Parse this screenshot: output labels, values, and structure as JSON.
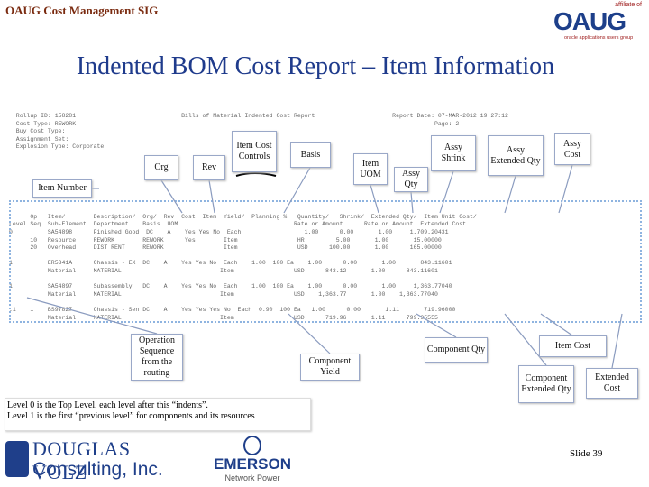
{
  "header": {
    "title": "OAUG Cost Management SIG",
    "logo": {
      "affiliate": "affiliate of",
      "name": "OAUG",
      "tagline": "oracle applications users group"
    }
  },
  "title": "Indented BOM Cost Report – Item Information",
  "report": {
    "lines": [
      "  Rollup ID: 158281                              Bills of Material Indented Cost Report                      Report Date: 07-MAR-2012 19:27:12",
      "  Cost Type: REWORK                                                                                                      Page: 2",
      "  Buy Cost Type:",
      "  Assignment Set:",
      "  Explosion Type: Corporate",
      "",
      "",
      "",
      "",
      "",
      "",
      "",
      "",
      "      Op   Item/        Description/  Org/  Rev  Cost  Item  Yield/  Planning %   Quantity/   Shrink/  Extended Qty/  Item Unit Cost/",
      "Level Seq  Sub-Element  Department    Basis  UOM                                 Rate or Amount      Rate or Amount  Extended Cost",
      "0          SA54898      Finished Good  DC    A    Yes Yes No  Each                  1.00      0.00       1.00     1,709.20431",
      "      10   Resource     REWORK        REWORK      Yes        Item                 HR         5.00       1.00       15.00000",
      "      20   Overhead     DIST RENT     REWORK                 Item                 USD      100.00       1.00      165.00000",
      "",
      "1          ER5341A      Chassis - EX  DC    A    Yes Yes No  Each    1.00  100 Ea    1.00      0.00       1.00       843.11601",
      "           Material     MATERIAL                            Item                 USD      843.12       1.00      843.11601",
      "",
      "1          SA54897      Subassembly   DC    A    Yes Yes No  Each    1.00  100 Ea    1.00      0.00       1.00     1,363.77040",
      "           Material     MATERIAL                            Item                 USD    1,363.77       1.00    1,363.77040",
      "",
      ".1    1    BS97827      Chassis - Sen DC    A    Yes Yes Yes No  Each  0.90  100 Ea   1.00      0.00       1.11       719.96000",
      "           Material     MATERIAL                            Item                 USD      719.96       1.11      799.95555"
    ]
  },
  "callouts": {
    "org": "Org",
    "rev": "Rev",
    "item_cost_controls": "Item Cost Controls",
    "basis": "Basis",
    "item_uom": "Item UOM",
    "assy_shrink": "Assy Shrink",
    "assy_qty": "Assy Qty",
    "assy_extended_qty": "Assy Extended Qty",
    "assy_cost": "Assy Cost",
    "item_number": "Item Number",
    "operation_sequence": "Operation Sequence from the routing",
    "component_yield": "Component Yield",
    "component_qty": "Component Qty",
    "item_cost": "Item Cost",
    "component_extended_qty": "Component Extended Qty",
    "extended_cost": "Extended Cost"
  },
  "notes": [
    "Level 0 is the Top Level, each level after this “indents”.",
    "Level 1 is the first “previous level” for components and its resources"
  ],
  "footer": {
    "douglas_volz": {
      "name": "DOUGLAS VOLZ",
      "subname": "Consulting, Inc."
    },
    "emerson": {
      "name": "EMERSON",
      "subname": "Network Power"
    },
    "slide_number": "Slide 39"
  }
}
